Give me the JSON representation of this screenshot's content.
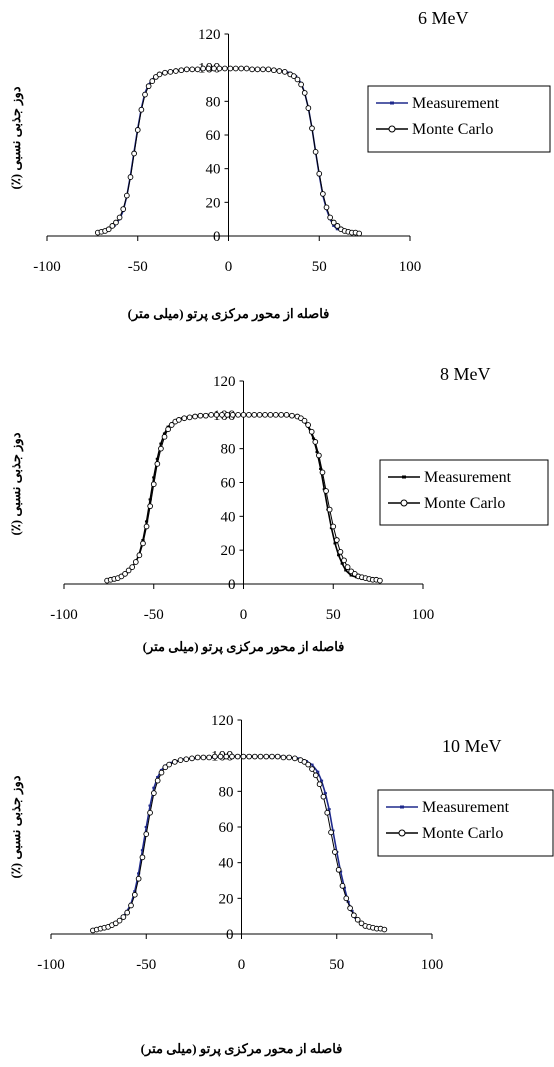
{
  "chart_data": [
    {
      "type": "line",
      "title": "6 MeV",
      "xlabel": "فاصله از محور مرکزی پرتو (میلی متر)",
      "ylabel": "دوز جذبی نسبی (٪)",
      "xlim": [
        -100,
        100
      ],
      "ylim": [
        0,
        120
      ],
      "xticks": [
        -100,
        -50,
        0,
        50,
        100
      ],
      "yticks": [
        0,
        20,
        40,
        60,
        80,
        100,
        120
      ],
      "legend": "right",
      "series": [
        {
          "name": "Measurement",
          "color": "#1f2a8c",
          "marker": "dash",
          "x": [
            -72,
            -69,
            -66,
            -63,
            -60,
            -58,
            -56,
            -54,
            -52,
            -50,
            -48,
            -46,
            -44,
            -42,
            -40,
            -37,
            -34,
            -30,
            -25,
            -20,
            -15,
            -10,
            -5,
            0,
            5,
            10,
            15,
            20,
            25,
            30,
            34,
            37,
            40,
            42,
            44,
            46,
            48,
            50,
            52,
            54,
            56,
            58,
            60,
            63,
            66,
            69,
            72
          ],
          "y": [
            2,
            3,
            4,
            6,
            10,
            15,
            24,
            36,
            50,
            64,
            76,
            85,
            90,
            93,
            95,
            96.5,
            97.5,
            98,
            98.5,
            99,
            99,
            99.5,
            99.5,
            99.5,
            99.5,
            99.5,
            99,
            99,
            98.5,
            98,
            97,
            95,
            91,
            85,
            76,
            64,
            50,
            36,
            24,
            16,
            10,
            6,
            4,
            3,
            2.5,
            2,
            1.5
          ]
        },
        {
          "name": "Monte Carlo",
          "color": "#000000",
          "marker": "circle",
          "x": [
            -72,
            -70,
            -68,
            -66,
            -64,
            -62,
            -60,
            -58,
            -56,
            -54,
            -52,
            -50,
            -48,
            -46,
            -44,
            -42,
            -40,
            -38,
            -35,
            -32,
            -29,
            -26,
            -23,
            -20,
            -17,
            -14,
            -11,
            -8,
            -5,
            -2,
            1,
            4,
            7,
            10,
            13,
            16,
            19,
            22,
            25,
            28,
            31,
            34,
            36,
            38,
            40,
            42,
            44,
            46,
            48,
            50,
            52,
            54,
            56,
            58,
            60,
            62,
            64,
            66,
            68,
            70,
            72
          ],
          "y": [
            2,
            2.5,
            3,
            4,
            6,
            8,
            11,
            16,
            24,
            35,
            49,
            63,
            75,
            84,
            89,
            92,
            94.5,
            96,
            97,
            97.5,
            98,
            98.5,
            99,
            99,
            99,
            99.5,
            99.5,
            99.5,
            99.5,
            99.5,
            99.5,
            99.5,
            99.5,
            99.5,
            99,
            99,
            99,
            99,
            98.5,
            98,
            97.5,
            96,
            95,
            93,
            90,
            85,
            76,
            64,
            50,
            37,
            25,
            17,
            11,
            8,
            6,
            4,
            3,
            2.5,
            2,
            2,
            1.5
          ]
        }
      ]
    },
    {
      "type": "line",
      "title": "8 MeV",
      "xlabel": "فاصله از محور مرکزی پرتو (میلی متر)",
      "ylabel": "دوز جذبی نسبی (٪)",
      "xlim": [
        -100,
        100
      ],
      "ylim": [
        0,
        120
      ],
      "xticks": [
        -100,
        -50,
        0,
        50,
        100
      ],
      "yticks": [
        0,
        20,
        40,
        60,
        80,
        100,
        120
      ],
      "legend": "right",
      "series": [
        {
          "name": "Measurement",
          "color": "#000000",
          "marker": "dash",
          "x": [
            -75,
            -72,
            -69,
            -66,
            -63,
            -60,
            -58,
            -56,
            -54,
            -52,
            -50,
            -48,
            -46,
            -44,
            -42,
            -40,
            -37,
            -34,
            -30,
            -25,
            -20,
            -15,
            -10,
            -5,
            0,
            5,
            10,
            15,
            20,
            25,
            30,
            33,
            36,
            39,
            41,
            43,
            45,
            47,
            49,
            51,
            53,
            55,
            57,
            60,
            63,
            66,
            70,
            75
          ],
          "y": [
            2,
            3,
            4,
            6,
            9,
            13,
            18,
            26,
            37,
            50,
            63,
            74,
            83,
            89,
            93,
            95,
            97,
            98,
            99,
            99.5,
            100,
            100,
            100,
            100,
            100,
            100,
            100,
            100,
            100,
            99.5,
            99,
            97,
            93,
            86,
            78,
            68,
            56,
            44,
            33,
            24,
            17,
            12,
            8,
            5,
            4,
            3,
            2.5,
            2
          ]
        },
        {
          "name": "Monte Carlo",
          "color": "#000000",
          "marker": "circle",
          "x": [
            -76,
            -74,
            -72,
            -70,
            -68,
            -66,
            -64,
            -62,
            -60,
            -58,
            -56,
            -54,
            -52,
            -50,
            -48,
            -46,
            -44,
            -42,
            -40,
            -38,
            -36,
            -33,
            -30,
            -27,
            -24,
            -21,
            -18,
            -15,
            -12,
            -9,
            -6,
            -3,
            0,
            3,
            6,
            9,
            12,
            15,
            18,
            21,
            24,
            27,
            30,
            32,
            34,
            36,
            38,
            40,
            42,
            44,
            46,
            48,
            50,
            52,
            54,
            56,
            58,
            60,
            62,
            64,
            66,
            68,
            70,
            72,
            74,
            76
          ],
          "y": [
            2,
            2.5,
            3,
            3.5,
            4.5,
            6,
            8,
            10,
            13,
            17,
            24,
            34,
            46,
            59,
            71,
            80,
            87,
            91.5,
            94,
            96,
            97,
            98,
            98.5,
            99,
            99.5,
            99.5,
            100,
            100,
            100,
            100,
            100,
            100,
            100,
            100,
            100,
            100,
            100,
            100,
            100,
            100,
            100,
            99.5,
            99,
            98,
            96.5,
            94,
            90,
            84,
            76,
            66,
            55,
            44,
            34,
            26,
            19,
            14,
            10,
            7.5,
            6,
            4.5,
            4,
            3.5,
            3,
            2.5,
            2.5,
            2
          ]
        }
      ]
    },
    {
      "type": "line",
      "title": "10 MeV",
      "xlabel": "فاصله از محور مرکزی پرتو (میلی متر)",
      "ylabel": "دوز جذبی نسبی (٪)",
      "xlim": [
        -100,
        100
      ],
      "ylim": [
        0,
        120
      ],
      "xticks": [
        -100,
        -50,
        0,
        50,
        100
      ],
      "yticks": [
        0,
        20,
        40,
        60,
        80,
        100,
        120
      ],
      "legend": "right",
      "series": [
        {
          "name": "Measurement",
          "color": "#1f2a8c",
          "marker": "dash",
          "x": [
            -77,
            -74,
            -71,
            -68,
            -65,
            -62,
            -60,
            -58,
            -56,
            -54,
            -52,
            -50,
            -48,
            -46,
            -44,
            -42,
            -40,
            -37,
            -34,
            -30,
            -25,
            -20,
            -15,
            -10,
            -5,
            0,
            5,
            10,
            15,
            20,
            25,
            30,
            34,
            37,
            40,
            42,
            44,
            46,
            48,
            50,
            52,
            54,
            56,
            58,
            60,
            63,
            66,
            70,
            75
          ],
          "y": [
            2,
            3,
            4,
            5,
            7,
            10,
            13,
            17,
            24,
            34,
            47,
            60,
            72,
            82,
            88,
            92,
            94.5,
            96,
            97,
            98,
            98.5,
            99,
            99,
            99.5,
            99.5,
            99.5,
            99.5,
            99.5,
            99.5,
            99.5,
            99,
            98.5,
            97,
            95,
            91,
            86,
            79,
            70,
            58,
            46,
            35,
            26,
            18,
            13,
            9,
            6,
            4,
            3,
            2.5
          ]
        },
        {
          "name": "Monte Carlo",
          "color": "#000000",
          "marker": "circle",
          "x": [
            -78,
            -76,
            -74,
            -72,
            -70,
            -68,
            -66,
            -64,
            -62,
            -60,
            -58,
            -56,
            -54,
            -52,
            -50,
            -48,
            -46,
            -44,
            -42,
            -40,
            -38,
            -35,
            -32,
            -29,
            -26,
            -23,
            -20,
            -17,
            -14,
            -11,
            -8,
            -5,
            -2,
            1,
            4,
            7,
            10,
            13,
            16,
            19,
            22,
            25,
            28,
            31,
            33,
            35,
            37,
            39,
            41,
            43,
            45,
            47,
            49,
            51,
            53,
            55,
            57,
            59,
            61,
            63,
            65,
            67,
            69,
            71,
            73,
            75
          ],
          "y": [
            2,
            2.5,
            3,
            3.5,
            4,
            5,
            6,
            7.5,
            9.5,
            12,
            16,
            22,
            31,
            43,
            56,
            68,
            79,
            86,
            90.5,
            93.5,
            95,
            96.5,
            97.5,
            98,
            98.5,
            99,
            99,
            99,
            99.5,
            99.5,
            99.5,
            99.5,
            99.5,
            99.5,
            99.5,
            99.5,
            99.5,
            99.5,
            99.5,
            99.5,
            99,
            99,
            98.5,
            97.5,
            96.5,
            95,
            92.5,
            89,
            84,
            77,
            68,
            57,
            46,
            36,
            27,
            20,
            14.5,
            10.5,
            8,
            6,
            4.5,
            4,
            3.5,
            3,
            3,
            2.5
          ]
        }
      ]
    }
  ]
}
